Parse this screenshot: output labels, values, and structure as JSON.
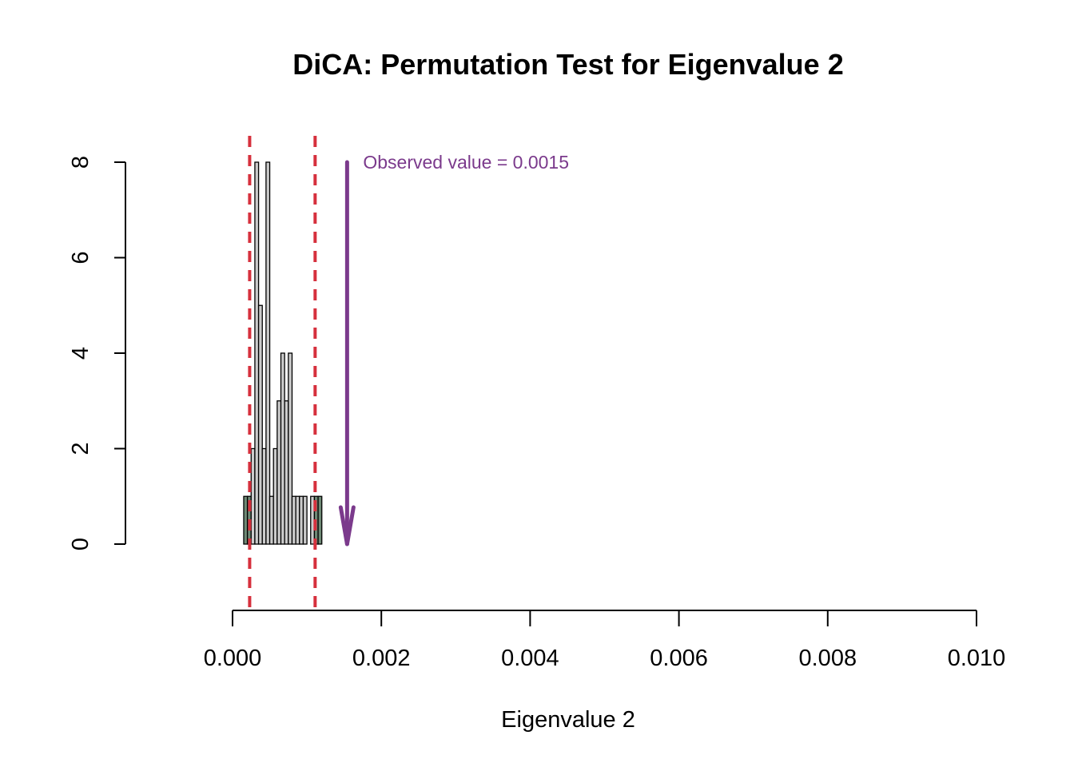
{
  "chart_data": {
    "type": "bar",
    "title": "DiCA: Permutation Test for Eigenvalue 2",
    "xlabel": "Eigenvalue 2",
    "ylabel": "",
    "xlim": [
      0,
      0.01
    ],
    "ylim": [
      0,
      8
    ],
    "x_ticks": [
      0,
      0.002,
      0.004,
      0.006,
      0.008,
      0.01
    ],
    "x_tick_labels": [
      "0.000",
      "0.002",
      "0.004",
      "0.006",
      "0.008",
      "0.010"
    ],
    "y_ticks": [
      0,
      2,
      4,
      6,
      8
    ],
    "y_tick_labels": [
      "0",
      "2",
      "4",
      "6",
      "8"
    ],
    "bin_width": 5e-05,
    "bins": [
      {
        "x0": 0.00015,
        "x1": 0.0002,
        "count": 1,
        "tail": true
      },
      {
        "x0": 0.0002,
        "x1": 0.00025,
        "count": 1,
        "tail": true
      },
      {
        "x0": 0.00025,
        "x1": 0.0003,
        "count": 2,
        "tail": false
      },
      {
        "x0": 0.0003,
        "x1": 0.00035,
        "count": 8,
        "tail": false
      },
      {
        "x0": 0.00035,
        "x1": 0.0004,
        "count": 5,
        "tail": false
      },
      {
        "x0": 0.0004,
        "x1": 0.00045,
        "count": 2,
        "tail": false
      },
      {
        "x0": 0.00045,
        "x1": 0.0005,
        "count": 8,
        "tail": false
      },
      {
        "x0": 0.0005,
        "x1": 0.00055,
        "count": 1,
        "tail": false
      },
      {
        "x0": 0.00055,
        "x1": 0.0006,
        "count": 2,
        "tail": false
      },
      {
        "x0": 0.0006,
        "x1": 0.00065,
        "count": 3,
        "tail": false
      },
      {
        "x0": 0.00065,
        "x1": 0.0007,
        "count": 4,
        "tail": false
      },
      {
        "x0": 0.0007,
        "x1": 0.00075,
        "count": 3,
        "tail": false
      },
      {
        "x0": 0.00075,
        "x1": 0.0008,
        "count": 4,
        "tail": false
      },
      {
        "x0": 0.0008,
        "x1": 0.00085,
        "count": 1,
        "tail": false
      },
      {
        "x0": 0.00085,
        "x1": 0.0009,
        "count": 1,
        "tail": false
      },
      {
        "x0": 0.0009,
        "x1": 0.00095,
        "count": 1,
        "tail": false
      },
      {
        "x0": 0.00095,
        "x1": 0.001,
        "count": 1,
        "tail": false
      },
      {
        "x0": 0.00105,
        "x1": 0.0011,
        "count": 1,
        "tail": false
      },
      {
        "x0": 0.0011,
        "x1": 0.00115,
        "count": 1,
        "tail": true
      },
      {
        "x0": 0.00115,
        "x1": 0.0012,
        "count": 1,
        "tail": true
      }
    ],
    "critical_values": [
      0.00023,
      0.00111
    ],
    "observed": {
      "value": 0.00154,
      "label": "Observed value = 0.0015"
    },
    "colors": {
      "bar_fill": "#cccccc",
      "tail_fill": "#6f8a76",
      "bar_stroke": "#000000",
      "critical_line": "#d6303d",
      "observed": "#7b3a8c"
    }
  }
}
